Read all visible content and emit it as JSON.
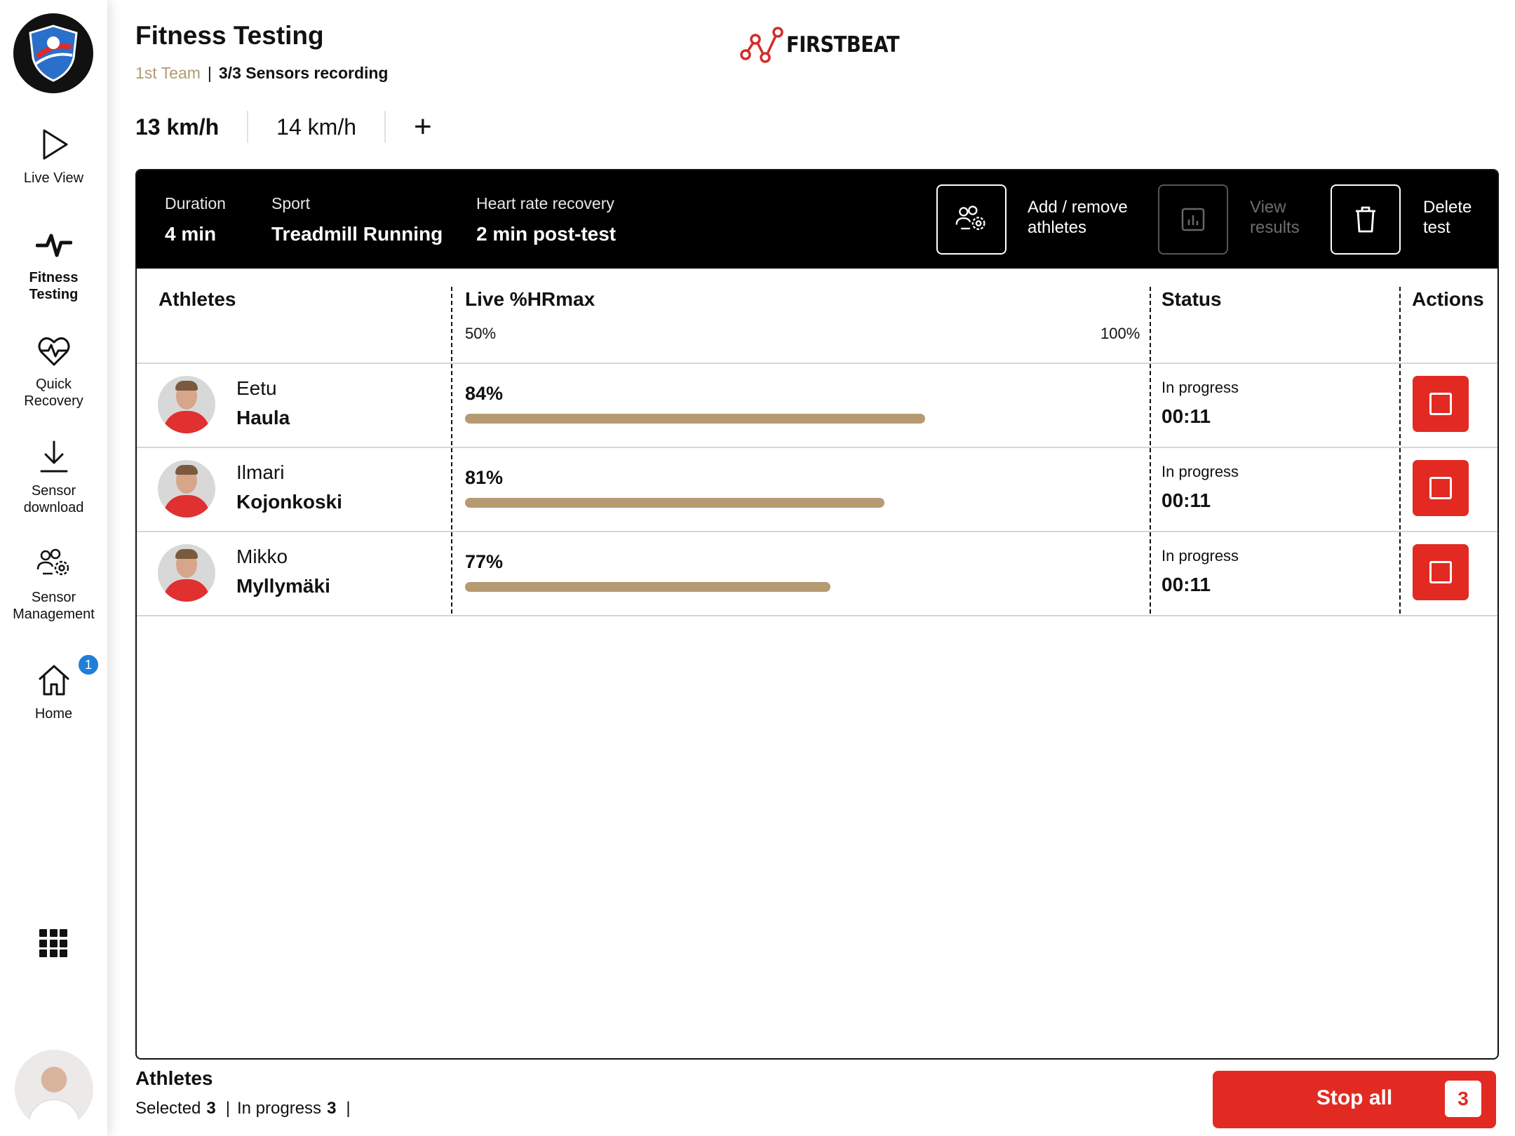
{
  "header": {
    "title": "Fitness Testing",
    "team": "1st Team",
    "separator": "|",
    "sensors_status": "3/3 Sensors recording",
    "brand": "FIRSTBEAT"
  },
  "sidebar": {
    "items": [
      {
        "label": "Live View",
        "icon": "play-icon"
      },
      {
        "label": "Fitness Testing",
        "icon": "pulse-icon",
        "active": true
      },
      {
        "label": "Quick Recovery",
        "icon": "heart-pulse-icon"
      },
      {
        "label": "Sensor download",
        "icon": "download-icon"
      },
      {
        "label": "Sensor Management",
        "icon": "users-gear-icon"
      },
      {
        "label": "Home",
        "icon": "home-icon",
        "badge": "1"
      }
    ]
  },
  "speed_tabs": [
    {
      "label": "13 km/h",
      "active": true
    },
    {
      "label": "14 km/h",
      "active": false
    }
  ],
  "add_tab_label": "+",
  "test_info": {
    "duration_label": "Duration",
    "duration_value": "4 min",
    "sport_label": "Sport",
    "sport_value": "Treadmill Running",
    "hr_recovery_label": "Heart rate recovery",
    "hr_recovery_value": "2 min post-test"
  },
  "actions": {
    "add_remove_line1": "Add / remove",
    "add_remove_line2": "athletes",
    "view_results_line1": "View",
    "view_results_line2": "results",
    "delete_line1": "Delete",
    "delete_line2": "test"
  },
  "table": {
    "col_athletes": "Athletes",
    "col_live": "Live %HRmax",
    "col_status": "Status",
    "col_actions": "Actions",
    "scale_min_label": "50%",
    "scale_max_label": "100%",
    "scale_min": 50,
    "scale_max": 100,
    "rows": [
      {
        "first": "Eetu",
        "last": "Haula",
        "hr_label": "84%",
        "hr": 84,
        "status": "In progress",
        "time": "00:11"
      },
      {
        "first": "Ilmari",
        "last": "Kojonkoski",
        "hr_label": "81%",
        "hr": 81,
        "status": "In progress",
        "time": "00:11"
      },
      {
        "first": "Mikko",
        "last": "Myllymäki",
        "hr_label": "77%",
        "hr": 77,
        "status": "In progress",
        "time": "00:11"
      }
    ]
  },
  "footer": {
    "title": "Athletes",
    "selected_label": "Selected",
    "selected_count": "3",
    "in_progress_label": "In progress",
    "in_progress_count": "3",
    "pipe": "|",
    "stop_all_label": "Stop all",
    "stop_all_count": "3"
  },
  "colors": {
    "accent_red": "#e22a22",
    "team_gold": "#b09a72",
    "bar_fill": "#b59a72",
    "badge_blue": "#1f7fd6"
  }
}
